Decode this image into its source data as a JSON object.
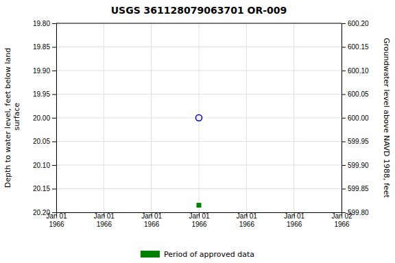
{
  "chart_data": {
    "type": "scatter",
    "title": "USGS 361128079063701 OR-009",
    "y_label": "Depth to water level, feet below land\n surface",
    "y2_label": "Groundwater level above NAVD 1988, feet",
    "categories": [
      "Jan 01\n1966",
      "Jan 01\n1966",
      "Jan 01\n1966",
      "Jan 01\n1966",
      "Jan 01\n1966",
      "Jan 01\n1966",
      "Jan 02\n1966"
    ],
    "series": [
      {
        "color": "#0000cc",
        "marker": "open_circle",
        "values": [
          null,
          null,
          null,
          20.0,
          null,
          null,
          null
        ]
      },
      {
        "name": "Period of approved data",
        "color": "#008000",
        "marker": "square",
        "values": [
          null,
          null,
          null,
          20.185,
          null,
          null,
          null
        ]
      }
    ],
    "ylim": [
      20.2,
      19.8
    ],
    "yticks": [
      {
        "value": 19.8,
        "label": "19.80"
      },
      19.85,
      {
        "value": 19.9,
        "label": "19.90"
      },
      19.95,
      {
        "value": 20.0,
        "label": "20.00"
      },
      20.05,
      {
        "value": 20.1,
        "label": "20.10"
      },
      20.15,
      {
        "value": 20.2,
        "label": "20.20"
      }
    ],
    "y2lim": [
      599.8,
      600.2
    ],
    "y2ticks": [
      {
        "value": 600.2,
        "label": "600.20"
      },
      600.15,
      {
        "value": 600.1,
        "label": "600.10"
      },
      600.05,
      {
        "value": 600.0,
        "label": "600.00"
      },
      599.95,
      {
        "value": 599.9,
        "label": "599.90"
      },
      599.85,
      {
        "value": 599.8,
        "label": "599.80"
      }
    ],
    "grid": true,
    "legend": "bottom"
  }
}
